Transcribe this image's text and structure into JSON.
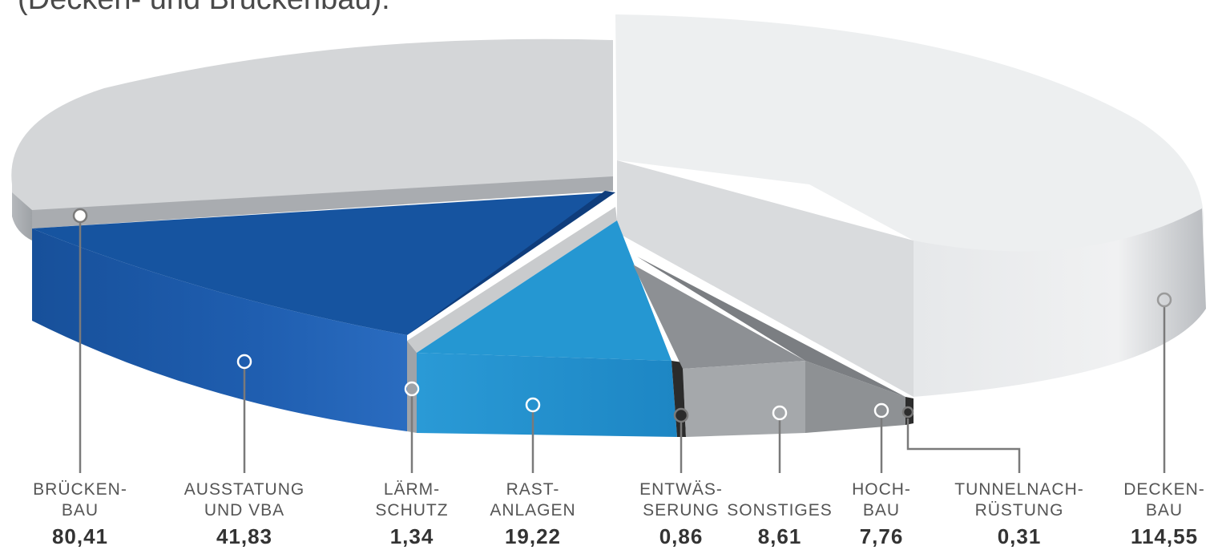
{
  "header": {
    "text": "(Decken- und Brückenbau)."
  },
  "chart_data": {
    "type": "pie",
    "title": "",
    "unit": "",
    "slices": [
      {
        "label": "DECKEN-\nBAU",
        "value": 114.55,
        "value_text": "114,55",
        "color": "#eceeef"
      },
      {
        "label": "BRÜCKEN-\nBAU",
        "value": 80.41,
        "value_text": "80,41",
        "color": "#d4d6d8"
      },
      {
        "label": "AUSSTATUNG\nUND VBA",
        "value": 41.83,
        "value_text": "41,83",
        "color": "#1654a0"
      },
      {
        "label": "LÄRM-\nSCHUTZ",
        "value": 1.34,
        "value_text": "1,34",
        "color": "#9fa3a8"
      },
      {
        "label": "RAST-\nANLAGEN",
        "value": 19.22,
        "value_text": "19,22",
        "color": "#2597d2"
      },
      {
        "label": "ENTWÄS-\nSERUNG",
        "value": 0.86,
        "value_text": "0,86",
        "color": "#3a3a3a"
      },
      {
        "label": "SONSTIGES",
        "value": 8.61,
        "value_text": "8,61",
        "color": "#9a9c9f"
      },
      {
        "label": "HOCH-\nBAU",
        "value": 7.76,
        "value_text": "7,76",
        "color": "#7d7f82"
      },
      {
        "label": "TUNNELNACH-\nRÜSTUNG",
        "value": 0.31,
        "value_text": "0,31",
        "color": "#2c2c2c"
      }
    ]
  }
}
